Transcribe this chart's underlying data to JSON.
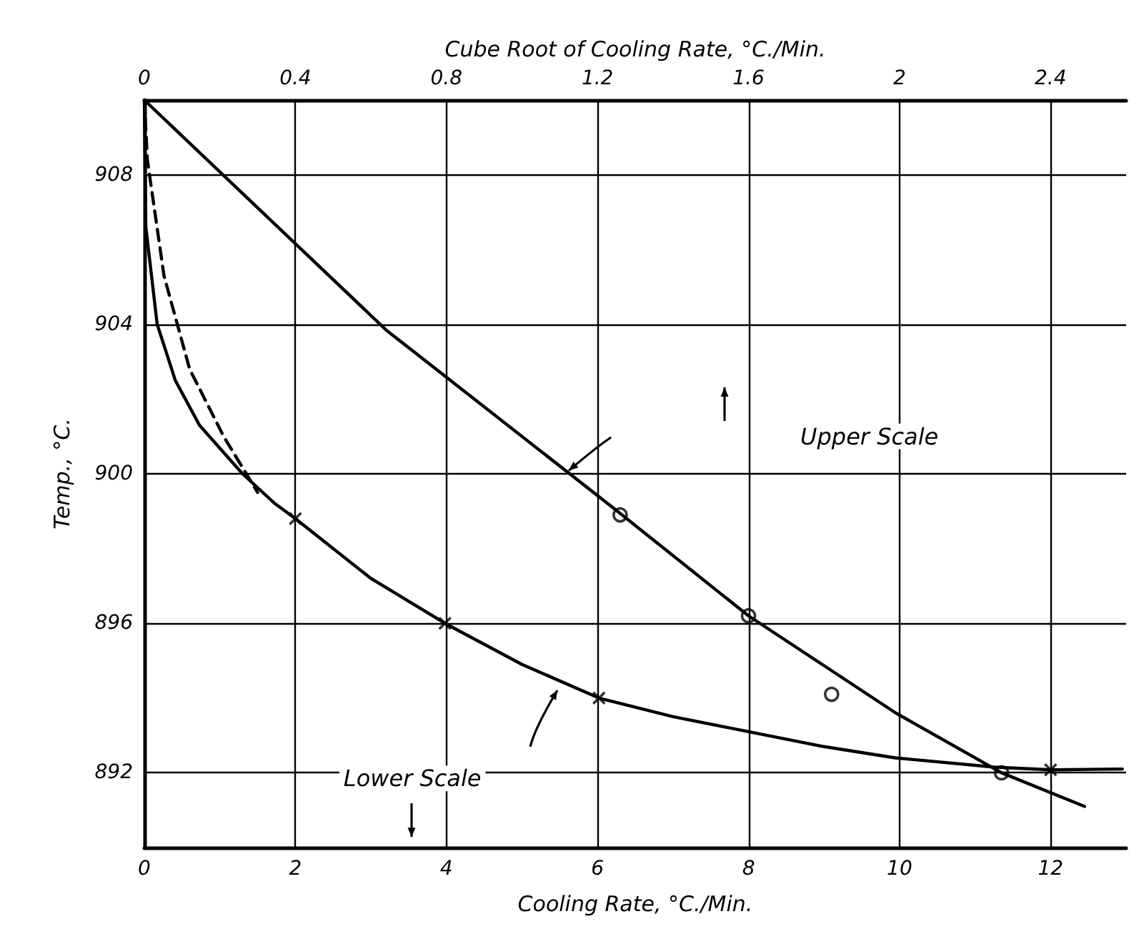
{
  "chart_data": {
    "type": "line",
    "xlabel": "Cooling Rate, °C./Min.",
    "x2label": "Cube Root of Cooling Rate, °C./Min.",
    "ylabel": "Temp., °C.",
    "xlim": [
      0,
      13
    ],
    "xticks": [
      0,
      2,
      4,
      6,
      8,
      10,
      12
    ],
    "x2lim": [
      0,
      2.6
    ],
    "x2ticks": [
      0,
      0.4,
      0.8,
      1.2,
      1.6,
      2.0,
      2.4
    ],
    "ylim": [
      890,
      910
    ],
    "yticks": [
      892,
      896,
      900,
      904,
      908
    ],
    "grid": true,
    "series": [
      {
        "color": "#000000",
        "marker": "none",
        "line_style": "solid",
        "x": [
          0,
          0.02,
          0.17,
          0.41,
          0.73,
          1.3,
          1.73,
          2,
          3,
          3.98,
          5,
          6.02,
          7,
          8,
          9,
          9.94,
          11.26,
          12,
          12.95
        ],
        "values": [
          910,
          906.6,
          904,
          902.5,
          901.3,
          900,
          899.2,
          898.8,
          897.2,
          896,
          894.9,
          894,
          893.5,
          893.1,
          892.7,
          892.4,
          892.15,
          892.08,
          892.1
        ]
      },
      {
        "color": "#000000",
        "marker": "none",
        "line_style": "dashed",
        "x": [
          0,
          0.04,
          0.26,
          0.6,
          1.05,
          1.35,
          1.5
        ],
        "values": [
          910,
          908.4,
          905.3,
          902.8,
          901,
          900,
          899.5
        ]
      },
      {
        "axis": "x2",
        "color": "#000000",
        "marker": "none",
        "line_style": "solid",
        "x": [
          0,
          0.64,
          1.24,
          1.6,
          1.99,
          2.27,
          2.49
        ],
        "values": [
          910,
          903.85,
          899.1,
          896.2,
          893.6,
          892,
          891.1
        ]
      },
      {
        "type": "scatter",
        "color": "#000000",
        "marker": "cross",
        "x": [
          2,
          3.98,
          6.02,
          12
        ],
        "values": [
          898.8,
          896,
          894,
          892.08
        ]
      },
      {
        "type": "scatter",
        "axis": "x2",
        "color": "#000000",
        "marker": "circle",
        "x": [
          1.26,
          1.6,
          1.82,
          2.27
        ],
        "values": [
          898.9,
          896.2,
          894.1,
          892
        ]
      }
    ],
    "annotations": [
      "Upper Scale",
      "Lower Scale"
    ]
  }
}
